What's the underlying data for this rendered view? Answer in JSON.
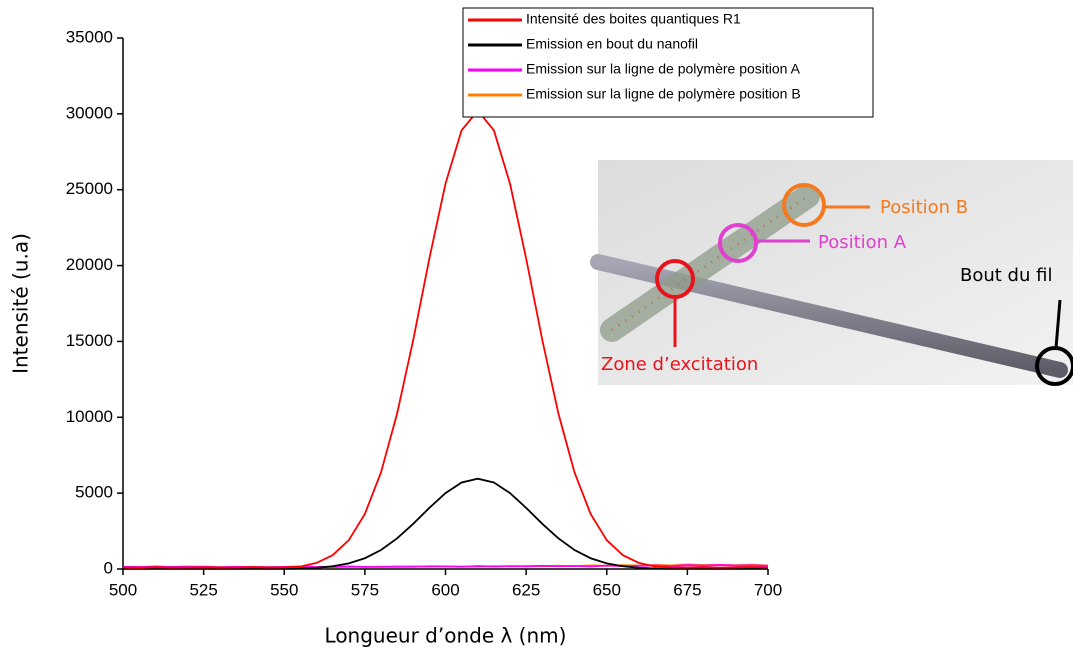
{
  "chart_data": {
    "type": "line",
    "x_label": "Longueur d’onde λ (nm)",
    "y_label": "Intensité (u.a)",
    "x": [
      500,
      505,
      510,
      515,
      520,
      525,
      530,
      535,
      540,
      545,
      550,
      555,
      560,
      565,
      570,
      575,
      580,
      585,
      590,
      595,
      600,
      605,
      610,
      615,
      620,
      625,
      630,
      635,
      640,
      645,
      650,
      655,
      660,
      665,
      670,
      675,
      680,
      685,
      690,
      695,
      700
    ],
    "series": [
      {
        "name": "Intensité des boites quantiques R1",
        "color": "#ff0000",
        "values": [
          100,
          80,
          120,
          90,
          100,
          110,
          90,
          100,
          120,
          100,
          110,
          160,
          400,
          910,
          1900,
          3630,
          6370,
          10250,
          15110,
          20470,
          25400,
          28920,
          30200,
          28920,
          25400,
          20470,
          15110,
          10250,
          6370,
          3630,
          1900,
          910,
          400,
          160,
          110,
          100,
          120,
          90,
          110,
          130,
          100
        ]
      },
      {
        "name": "Emission en bout du nanofil",
        "color": "#000000",
        "values": [
          20,
          20,
          20,
          20,
          20,
          20,
          20,
          20,
          20,
          20,
          20,
          30,
          80,
          180,
          370,
          710,
          1250,
          2020,
          2980,
          4030,
          5000,
          5700,
          5950,
          5700,
          5000,
          4030,
          2980,
          2020,
          1250,
          710,
          370,
          180,
          80,
          30,
          20,
          20,
          20,
          20,
          20,
          20,
          20
        ]
      },
      {
        "name": "Emission sur la ligne de polymère position A",
        "color": "#ff00ff",
        "values": [
          150,
          120,
          170,
          130,
          160,
          140,
          110,
          150,
          130,
          120,
          140,
          160,
          130,
          150,
          170,
          140,
          130,
          160,
          150,
          180,
          170,
          150,
          200,
          160,
          190,
          170,
          210,
          180,
          200,
          170,
          220,
          190,
          210,
          230,
          200,
          250,
          220,
          260,
          230,
          240,
          210
        ]
      },
      {
        "name": "Emission sur la ligne de polymère position B",
        "color": "#ff8000",
        "values": [
          130,
          150,
          110,
          140,
          120,
          160,
          130,
          110,
          150,
          120,
          130,
          110,
          140,
          120,
          150,
          130,
          160,
          140,
          170,
          150,
          180,
          160,
          150,
          190,
          170,
          200,
          180,
          220,
          190,
          240,
          210,
          250,
          230,
          270,
          240,
          300,
          260,
          280,
          250,
          290,
          230
        ]
      }
    ],
    "xlim": [
      500,
      700
    ],
    "xticks": [
      500,
      525,
      550,
      575,
      600,
      625,
      650,
      675,
      700
    ],
    "ylim": [
      0,
      35000
    ],
    "yticks": [
      0,
      5000,
      10000,
      15000,
      20000,
      25000,
      30000,
      35000
    ],
    "grid": false,
    "legend": "top",
    "annotations": [
      {
        "text": "Position B",
        "color": "#f47a20"
      },
      {
        "text": "Position A",
        "color": "#e040d0"
      },
      {
        "text": "Bout du fil",
        "color": "#000000"
      },
      {
        "text": "Zone d’excitation",
        "color": "#e8141c"
      }
    ]
  }
}
